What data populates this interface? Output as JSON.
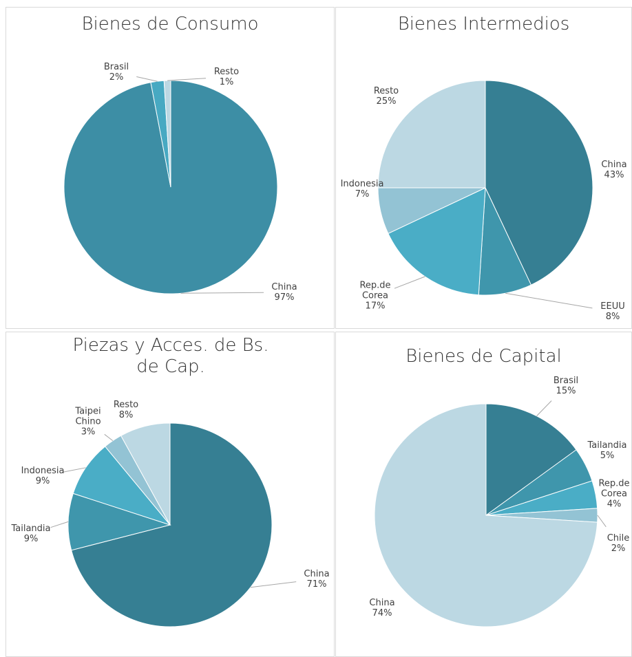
{
  "chart_data": [
    {
      "type": "pie",
      "title": "Bienes de Consumo",
      "categories": [
        "China",
        "Brasil",
        "Resto"
      ],
      "values": [
        97,
        2,
        1
      ],
      "value_labels": [
        "97%",
        "2%",
        "1%"
      ],
      "colors": [
        "#3d8ea5",
        "#47a9c2",
        "#bcd8e3"
      ]
    },
    {
      "type": "pie",
      "title": "Bienes Intermedios",
      "categories": [
        "China",
        "EEUU",
        "Rep.de Corea",
        "Indonesia",
        "Resto"
      ],
      "values": [
        43,
        8,
        17,
        7,
        25
      ],
      "value_labels": [
        "43%",
        "8%",
        "17%",
        "7%",
        "25%"
      ],
      "colors": [
        "#367f93",
        "#3f96ac",
        "#4aadc6",
        "#93c3d4",
        "#bcd8e3"
      ]
    },
    {
      "type": "pie",
      "title": "Piezas y Acces. de Bs. de Cap.",
      "categories": [
        "China",
        "Tailandia",
        "Indonesia",
        "Taipei Chino",
        "Resto"
      ],
      "values": [
        71,
        9,
        9,
        3,
        8
      ],
      "value_labels": [
        "71%",
        "9%",
        "9%",
        "3%",
        "8%"
      ],
      "colors": [
        "#367f93",
        "#3f96ac",
        "#4aadc6",
        "#93c3d4",
        "#bcd8e3"
      ]
    },
    {
      "type": "pie",
      "title": "Bienes de Capital",
      "categories": [
        "Brasil",
        "Tailandia",
        "Rep.de Corea",
        "Chile",
        "China"
      ],
      "values": [
        15,
        5,
        4,
        2,
        74
      ],
      "value_labels": [
        "15%",
        "5%",
        "4%",
        "2%",
        "74%"
      ],
      "colors": [
        "#367f93",
        "#3f96ac",
        "#4aadc6",
        "#93c3d4",
        "#bcd8e3"
      ]
    }
  ]
}
